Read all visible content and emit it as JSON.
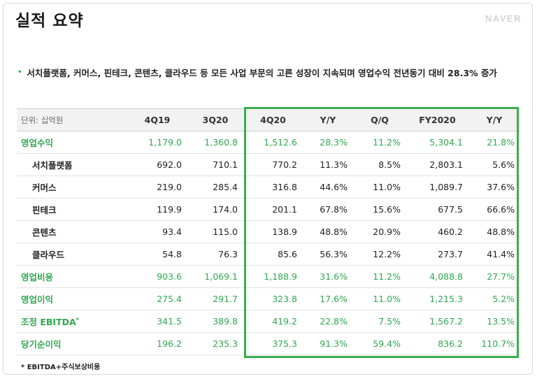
{
  "header": {
    "title": "실적 요약",
    "brand": "NAVER"
  },
  "summary": {
    "bullet": "•",
    "text": "서치플랫폼, 커머스, 핀테크, 콘텐츠, 클라우드 등 모든 사업 부문의 고른 성장이 지속되며 영업수익 전년동기 대비 28.3% 증가"
  },
  "table": {
    "unit_label": "단위: 십억원",
    "columns": [
      "4Q19",
      "3Q20",
      "4Q20",
      "Y/Y",
      "Q/Q",
      "FY2020",
      "Y/Y"
    ],
    "rows": [
      {
        "label": "영업수익",
        "sup": "",
        "values": [
          "1,179.0",
          "1,360.8",
          "1,512.6",
          "28.3%",
          "11.2%",
          "5,304.1",
          "21.8%"
        ]
      },
      {
        "label": "서치플랫폼",
        "sup": "",
        "values": [
          "692.0",
          "710.1",
          "770.2",
          "11.3%",
          "8.5%",
          "2,803.1",
          "5.6%"
        ]
      },
      {
        "label": "커머스",
        "sup": "",
        "values": [
          "219.0",
          "285.4",
          "316.8",
          "44.6%",
          "11.0%",
          "1,089.7",
          "37.6%"
        ]
      },
      {
        "label": "핀테크",
        "sup": "",
        "values": [
          "119.9",
          "174.0",
          "201.1",
          "67.8%",
          "15.6%",
          "677.5",
          "66.6%"
        ]
      },
      {
        "label": "콘텐츠",
        "sup": "",
        "values": [
          "93.4",
          "115.0",
          "138.9",
          "48.8%",
          "20.9%",
          "460.2",
          "48.8%"
        ]
      },
      {
        "label": "클라우드",
        "sup": "",
        "values": [
          "54.8",
          "76.3",
          "85.6",
          "56.3%",
          "12.2%",
          "273.7",
          "41.4%"
        ]
      },
      {
        "label": "영업비용",
        "sup": "",
        "values": [
          "903.6",
          "1,069.1",
          "1,188.9",
          "31.6%",
          "11.2%",
          "4,088.8",
          "27.7%"
        ]
      },
      {
        "label": "영업이익",
        "sup": "",
        "values": [
          "275.4",
          "291.7",
          "323.8",
          "17.6%",
          "11.0%",
          "1,215.3",
          "5.2%"
        ]
      },
      {
        "label": "조정 EBITDA",
        "sup": "*",
        "values": [
          "341.5",
          "389.8",
          "419.2",
          "22.8%",
          "7.5%",
          "1,567.2",
          "13.5%"
        ]
      },
      {
        "label": "당기순이익",
        "sup": "",
        "values": [
          "196.2",
          "235.3",
          "375.3",
          "91.3%",
          "59.4%",
          "836.2",
          "110.7%"
        ]
      }
    ]
  },
  "footnote": "* EBITDA+주식보상비용",
  "colors": {
    "accent_green": "#2fa84f",
    "box_green": "#3aad4e"
  }
}
